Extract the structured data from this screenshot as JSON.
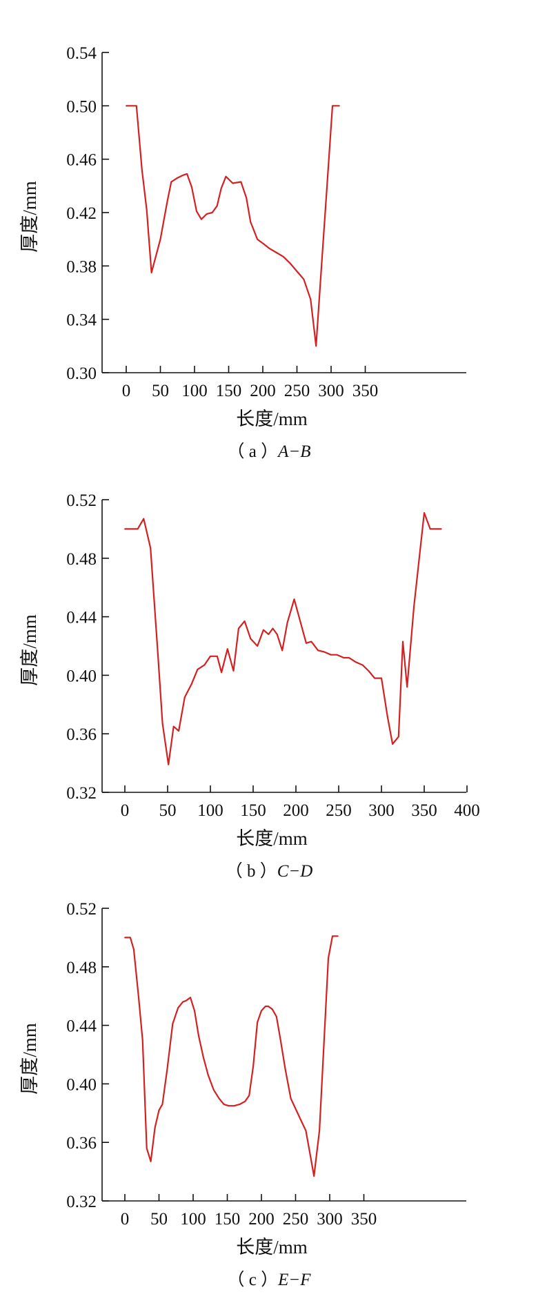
{
  "chart_data": [
    {
      "type": "line",
      "caption_prefix": "（ a ）",
      "caption_label": "A−B",
      "xlabel": "长度/mm",
      "ylabel": "厚度/mm",
      "xlim": [
        -20,
        350
      ],
      "ylim": [
        0.3,
        0.54
      ],
      "xticks": [
        0,
        50,
        100,
        150,
        200,
        250,
        300,
        350
      ],
      "xtick_labels": [
        "0",
        "50",
        "100",
        "150",
        "200",
        "250",
        "300",
        "350"
      ],
      "yticks": [
        0.3,
        0.34,
        0.38,
        0.42,
        0.46,
        0.5,
        0.54
      ],
      "ytick_labels": [
        "0.30",
        "0.34",
        "0.38",
        "0.42",
        "0.46",
        "0.50",
        "0.54"
      ],
      "grid": false,
      "line_color": "#d42020",
      "series": [
        {
          "x": [
            0,
            15,
            23,
            30,
            37,
            50,
            60,
            66,
            75,
            83,
            89,
            96,
            103,
            110,
            118,
            126,
            133,
            139,
            146,
            156,
            168,
            176,
            182,
            192,
            200,
            210,
            220,
            230,
            240,
            250,
            260,
            270,
            278,
            286,
            294,
            302,
            312
          ],
          "y": [
            0.5,
            0.5,
            0.452,
            0.422,
            0.375,
            0.4,
            0.428,
            0.443,
            0.446,
            0.448,
            0.449,
            0.439,
            0.421,
            0.415,
            0.419,
            0.42,
            0.425,
            0.438,
            0.447,
            0.442,
            0.443,
            0.431,
            0.413,
            0.4,
            0.397,
            0.393,
            0.39,
            0.387,
            0.382,
            0.376,
            0.37,
            0.355,
            0.32,
            0.38,
            0.44,
            0.5,
            0.5
          ]
        }
      ]
    },
    {
      "type": "line",
      "caption_prefix": "（ b ）",
      "caption_label": "C−D",
      "xlabel": "长度/mm",
      "ylabel": "厚度/mm",
      "xlim": [
        -20,
        400
      ],
      "ylim": [
        0.32,
        0.52
      ],
      "xticks": [
        0,
        50,
        100,
        150,
        200,
        250,
        300,
        350,
        400
      ],
      "xtick_labels": [
        "0",
        "50",
        "100",
        "150",
        "200",
        "250",
        "300",
        "350",
        "400"
      ],
      "yticks": [
        0.32,
        0.36,
        0.4,
        0.44,
        0.48,
        0.52
      ],
      "ytick_labels": [
        "0.32",
        "0.36",
        "0.40",
        "0.44",
        "0.48",
        "0.52"
      ],
      "grid": false,
      "line_color": "#d42020",
      "series": [
        {
          "x": [
            0,
            15,
            22,
            30,
            38,
            44,
            51,
            57,
            63,
            70,
            78,
            85,
            93,
            100,
            108,
            113,
            120,
            127,
            133,
            140,
            147,
            155,
            162,
            168,
            173,
            178,
            184,
            190,
            198,
            205,
            212,
            218,
            226,
            233,
            241,
            248,
            256,
            262,
            270,
            278,
            285,
            292,
            300,
            307,
            313,
            320,
            325,
            330,
            338,
            350,
            357,
            370
          ],
          "y": [
            0.5,
            0.5,
            0.507,
            0.487,
            0.42,
            0.367,
            0.339,
            0.365,
            0.362,
            0.385,
            0.394,
            0.404,
            0.407,
            0.413,
            0.413,
            0.402,
            0.418,
            0.403,
            0.432,
            0.437,
            0.425,
            0.42,
            0.431,
            0.428,
            0.432,
            0.428,
            0.417,
            0.436,
            0.452,
            0.437,
            0.422,
            0.423,
            0.417,
            0.416,
            0.414,
            0.414,
            0.412,
            0.412,
            0.409,
            0.407,
            0.403,
            0.398,
            0.398,
            0.372,
            0.353,
            0.358,
            0.423,
            0.392,
            0.447,
            0.511,
            0.5,
            0.5
          ]
        }
      ]
    },
    {
      "type": "line",
      "caption_prefix": "（ c ）",
      "caption_label": "E−F",
      "xlabel": "长度/mm",
      "ylabel": "厚度/mm",
      "xlim": [
        -20,
        350
      ],
      "ylim": [
        0.32,
        0.52
      ],
      "xticks": [
        0,
        50,
        100,
        150,
        200,
        250,
        300,
        350
      ],
      "xtick_labels": [
        "0",
        "50",
        "100",
        "150",
        "200",
        "250",
        "300",
        "350"
      ],
      "yticks": [
        0.32,
        0.36,
        0.4,
        0.44,
        0.48,
        0.52
      ],
      "ytick_labels": [
        "0.32",
        "0.36",
        "0.40",
        "0.44",
        "0.48",
        "0.52"
      ],
      "grid": false,
      "line_color": "#d42020",
      "series": [
        {
          "x": [
            0,
            8,
            13,
            20,
            26,
            32,
            38,
            44,
            50,
            55,
            62,
            70,
            78,
            85,
            90,
            96,
            102,
            108,
            115,
            122,
            130,
            138,
            145,
            152,
            160,
            168,
            176,
            182,
            188,
            194,
            200,
            206,
            210,
            216,
            222,
            228,
            235,
            243,
            250,
            258,
            265,
            272,
            277,
            285,
            298,
            304,
            312
          ],
          "y": [
            0.5,
            0.5,
            0.492,
            0.46,
            0.43,
            0.356,
            0.347,
            0.37,
            0.382,
            0.386,
            0.41,
            0.441,
            0.452,
            0.456,
            0.457,
            0.459,
            0.45,
            0.433,
            0.418,
            0.406,
            0.396,
            0.39,
            0.386,
            0.385,
            0.385,
            0.386,
            0.388,
            0.392,
            0.412,
            0.442,
            0.45,
            0.453,
            0.453,
            0.451,
            0.446,
            0.43,
            0.41,
            0.39,
            0.383,
            0.375,
            0.368,
            0.35,
            0.337,
            0.368,
            0.486,
            0.501,
            0.501
          ]
        }
      ]
    }
  ]
}
